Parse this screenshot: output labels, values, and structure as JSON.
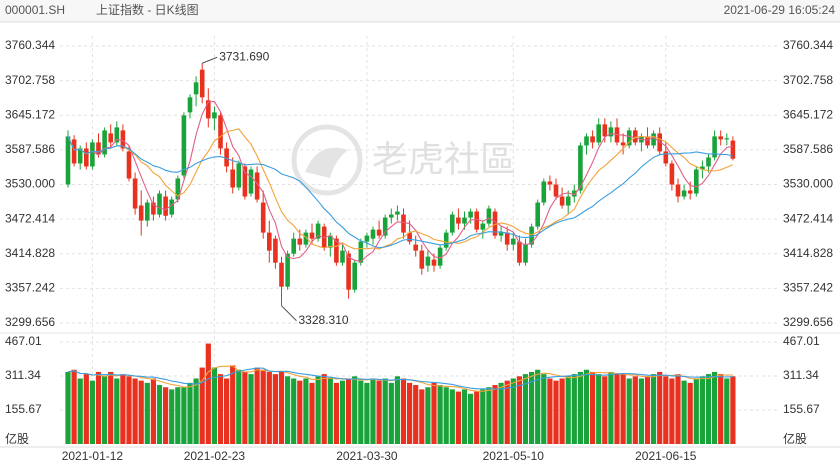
{
  "chart_data": {
    "type": "candlestick",
    "symbol": "000001.SH",
    "title": "上证指数 - 日K线图",
    "timestamp": "2021-06-29 16:05:24",
    "watermark": "老虎社區",
    "up_color": "#19a33a",
    "down_color": "#e8311f",
    "categories": [
      null,
      null,
      null,
      null,
      "2021-01-12",
      null,
      null,
      null,
      null,
      null,
      null,
      null,
      null,
      null,
      null,
      null,
      null,
      null,
      null,
      null,
      null,
      null,
      null,
      null,
      "2021-02-23",
      null,
      null,
      null,
      null,
      null,
      null,
      null,
      null,
      null,
      null,
      null,
      null,
      null,
      null,
      null,
      null,
      null,
      null,
      null,
      null,
      null,
      null,
      null,
      null,
      "2021-03-30",
      null,
      null,
      null,
      null,
      null,
      null,
      null,
      null,
      null,
      null,
      null,
      null,
      null,
      null,
      null,
      null,
      null,
      null,
      null,
      null,
      null,
      null,
      null,
      "2021-05-10",
      null,
      null,
      null,
      null,
      null,
      null,
      null,
      null,
      null,
      null,
      null,
      null,
      null,
      null,
      null,
      null,
      null,
      null,
      null,
      null,
      null,
      null,
      null,
      null,
      "2021-06-15",
      null,
      null,
      null,
      null,
      null,
      null,
      null,
      null,
      null,
      null,
      null
    ],
    "open": [
      3530,
      3605,
      3565,
      3590,
      3560,
      3600,
      3580,
      3615,
      3600,
      3620,
      3585,
      3540,
      3495,
      3470,
      3500,
      3480,
      3510,
      3480,
      3505,
      3545,
      3650,
      3680,
      3721,
      3670,
      3640,
      3645,
      3590,
      3555,
      3525,
      3560,
      3515,
      3550,
      3500,
      3450,
      3440,
      3400,
      3360,
      3415,
      3440,
      3430,
      3450,
      3440,
      3460,
      3425,
      3440,
      3400,
      3415,
      3355,
      3400,
      3435,
      3440,
      3455,
      3445,
      3475,
      3480,
      3480,
      3450,
      3430,
      3420,
      3395,
      3405,
      3395,
      3425,
      3450,
      3475,
      3465,
      3475,
      3485,
      3455,
      3465,
      3485,
      3445,
      3450,
      3430,
      3435,
      3400,
      3430,
      3460,
      3500,
      3535,
      3530,
      3510,
      3495,
      3510,
      3520,
      3595,
      3610,
      3600,
      3630,
      3610,
      3625,
      3600,
      3595,
      3620,
      3600,
      3610,
      3595,
      3615,
      3585,
      3565,
      3530,
      3510,
      3520,
      3515,
      3555,
      3560,
      3575,
      3610,
      3605,
      3603
    ],
    "high": [
      3620,
      3612,
      3595,
      3600,
      3605,
      3615,
      3625,
      3630,
      3635,
      3630,
      3595,
      3550,
      3520,
      3505,
      3510,
      3520,
      3520,
      3510,
      3545,
      3650,
      3680,
      3710,
      3731.69,
      3690,
      3660,
      3650,
      3600,
      3575,
      3570,
      3565,
      3560,
      3560,
      3520,
      3470,
      3445,
      3410,
      3420,
      3450,
      3455,
      3455,
      3465,
      3470,
      3465,
      3450,
      3445,
      3430,
      3420,
      3405,
      3440,
      3450,
      3460,
      3470,
      3480,
      3490,
      3495,
      3490,
      3470,
      3445,
      3430,
      3420,
      3415,
      3430,
      3455,
      3485,
      3490,
      3485,
      3490,
      3490,
      3470,
      3495,
      3490,
      3460,
      3460,
      3450,
      3445,
      3440,
      3465,
      3505,
      3540,
      3545,
      3540,
      3525,
      3520,
      3530,
      3600,
      3615,
      3620,
      3640,
      3640,
      3635,
      3640,
      3615,
      3625,
      3625,
      3615,
      3625,
      3620,
      3625,
      3600,
      3570,
      3540,
      3530,
      3535,
      3560,
      3570,
      3580,
      3620,
      3620,
      3615,
      3610
    ],
    "low": [
      3525,
      3560,
      3555,
      3555,
      3555,
      3575,
      3575,
      3590,
      3595,
      3585,
      3535,
      3480,
      3445,
      3460,
      3470,
      3475,
      3470,
      3475,
      3500,
      3540,
      3640,
      3660,
      3665,
      3625,
      3620,
      3580,
      3550,
      3515,
      3520,
      3505,
      3510,
      3500,
      3440,
      3400,
      3390,
      3328.31,
      3355,
      3410,
      3420,
      3425,
      3430,
      3435,
      3420,
      3410,
      3395,
      3395,
      3340,
      3350,
      3395,
      3425,
      3430,
      3440,
      3440,
      3465,
      3470,
      3440,
      3430,
      3410,
      3380,
      3385,
      3385,
      3390,
      3420,
      3445,
      3455,
      3455,
      3465,
      3450,
      3440,
      3460,
      3440,
      3435,
      3420,
      3420,
      3395,
      3395,
      3425,
      3455,
      3495,
      3520,
      3505,
      3490,
      3480,
      3500,
      3515,
      3580,
      3590,
      3595,
      3600,
      3600,
      3595,
      3580,
      3590,
      3595,
      3585,
      3590,
      3590,
      3580,
      3560,
      3520,
      3500,
      3505,
      3505,
      3510,
      3540,
      3550,
      3570,
      3595,
      3595,
      3570
    ],
    "close": [
      3610,
      3565,
      3590,
      3560,
      3600,
      3580,
      3620,
      3600,
      3625,
      3590,
      3540,
      3490,
      3470,
      3500,
      3480,
      3515,
      3478,
      3505,
      3540,
      3645,
      3675,
      3700,
      3675,
      3640,
      3650,
      3590,
      3560,
      3525,
      3565,
      3510,
      3555,
      3505,
      3450,
      3420,
      3400,
      3360,
      3415,
      3440,
      3430,
      3450,
      3440,
      3465,
      3425,
      3445,
      3400,
      3420,
      3355,
      3400,
      3435,
      3445,
      3455,
      3445,
      3475,
      3480,
      3485,
      3450,
      3435,
      3420,
      3390,
      3410,
      3395,
      3425,
      3450,
      3480,
      3465,
      3475,
      3485,
      3455,
      3465,
      3490,
      3445,
      3450,
      3430,
      3440,
      3400,
      3430,
      3460,
      3500,
      3535,
      3530,
      3510,
      3495,
      3510,
      3520,
      3595,
      3610,
      3600,
      3630,
      3610,
      3625,
      3600,
      3595,
      3620,
      3600,
      3610,
      3595,
      3615,
      3585,
      3565,
      3530,
      3510,
      3520,
      3515,
      3555,
      3560,
      3575,
      3610,
      3605,
      3607,
      3573
    ],
    "ylim": [
      3288,
      3777
    ],
    "yticks": [
      3299.656,
      3357.242,
      3414.828,
      3472.414,
      {
        "value": 3530,
        "label": "3530.000"
      },
      3587.586,
      3645.172,
      3702.758,
      3760.344
    ],
    "grid": true,
    "ma": [
      {
        "period": 5,
        "color": "#e0608a"
      },
      {
        "period": 10,
        "color": "#f2a33a"
      },
      {
        "period": 20,
        "color": "#3a9ee0"
      }
    ],
    "annotations": [
      {
        "value": 3731.69,
        "label": "3731.690"
      },
      {
        "value": 3328.31,
        "label": "3328.310"
      }
    ],
    "volume": {
      "unit": "亿股",
      "values": [
        330,
        340,
        300,
        320,
        290,
        330,
        310,
        330,
        300,
        320,
        310,
        300,
        290,
        280,
        300,
        270,
        260,
        250,
        260,
        260,
        280,
        300,
        350,
        460,
        350,
        320,
        300,
        360,
        340,
        330,
        320,
        350,
        340,
        330,
        320,
        330,
        310,
        300,
        290,
        300,
        280,
        310,
        320,
        300,
        280,
        290,
        300,
        310,
        290,
        280,
        300,
        290,
        300,
        280,
        310,
        300,
        280,
        270,
        250,
        260,
        280,
        270,
        260,
        250,
        240,
        250,
        230,
        240,
        250,
        260,
        270,
        280,
        290,
        300,
        310,
        320,
        330,
        340,
        320,
        300,
        290,
        300,
        310,
        320,
        330,
        340,
        330,
        320,
        310,
        330,
        320,
        320,
        300,
        310,
        300,
        310,
        320,
        330,
        310,
        300,
        320,
        290,
        280,
        300,
        310,
        320,
        330,
        320,
        300,
        310
      ],
      "ylim": [
        0,
        490
      ],
      "yticks": [
        155.67,
        311.34,
        467.01
      ],
      "ma": [
        {
          "period": 5,
          "color": "#f2a33a"
        },
        {
          "period": 10,
          "color": "#3a9ee0"
        }
      ]
    }
  }
}
